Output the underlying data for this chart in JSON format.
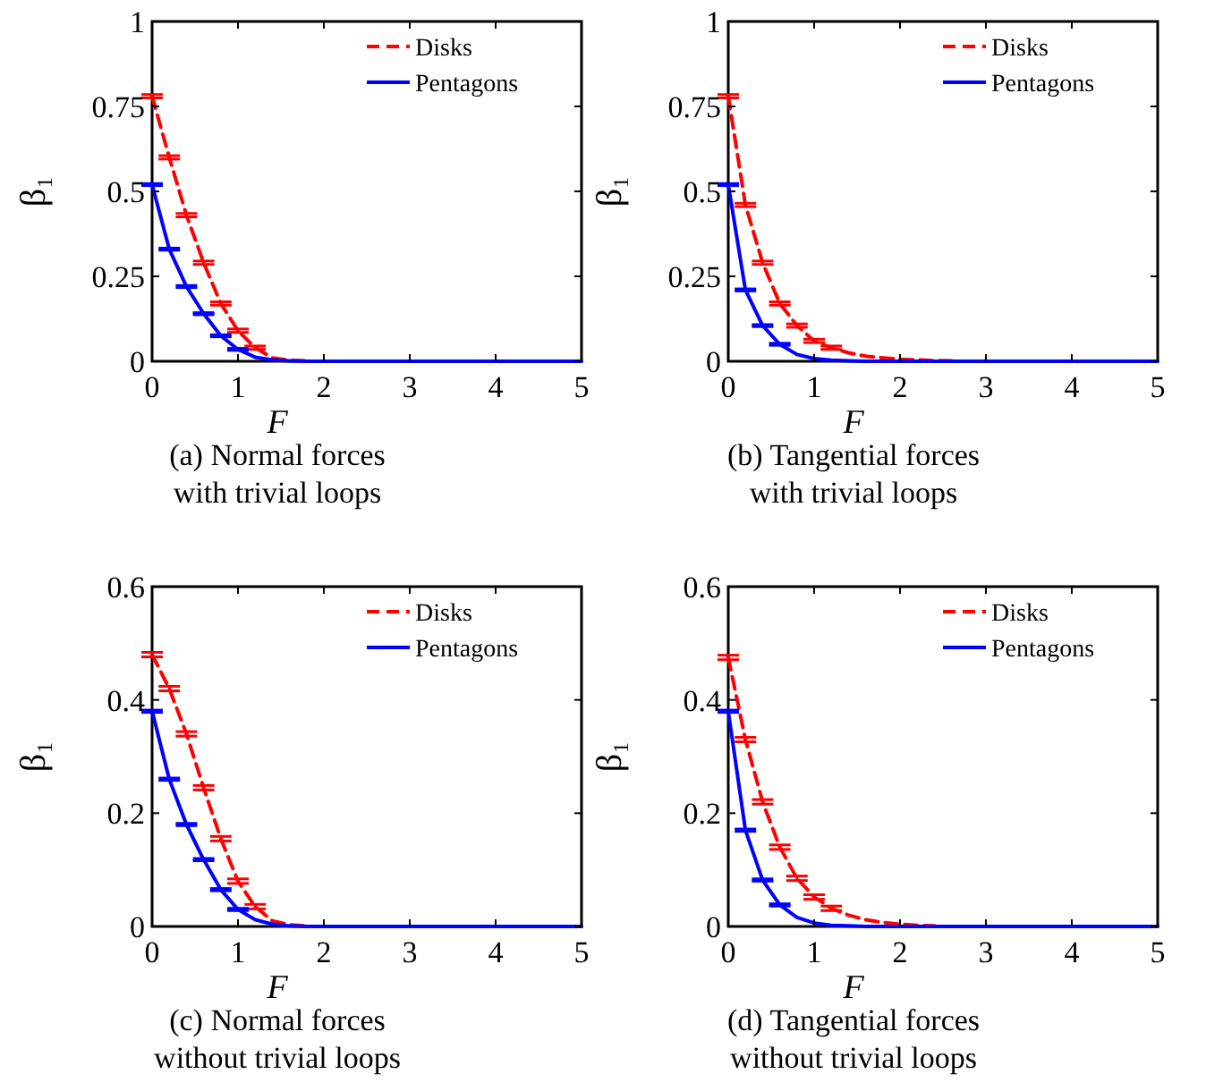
{
  "chart_data": [
    {
      "type": "line",
      "title": "(a)  Normal forces\nwith trivial loops",
      "xlabel": "F",
      "ylabel": "β₁",
      "xlim": [
        0,
        5
      ],
      "ylim": [
        0,
        1
      ],
      "xticks": [
        0,
        1,
        2,
        3,
        4,
        5
      ],
      "yticks": [
        0,
        0.25,
        0.5,
        0.75,
        1
      ],
      "legend": "top right",
      "grid": false,
      "x": [
        0,
        0.2,
        0.4,
        0.6,
        0.8,
        1,
        1.2,
        1.4,
        1.6,
        1.8,
        2,
        2.2,
        2.4,
        2.6,
        2.8,
        3,
        3.2,
        3.4,
        3.6,
        3.8,
        4,
        4.2,
        4.4,
        4.6,
        4.8,
        5
      ],
      "series": [
        {
          "name": "Disks",
          "color": "#ff0000",
          "line_style": "dashed",
          "values": [
            0.78,
            0.6,
            0.43,
            0.29,
            0.17,
            0.09,
            0.04,
            0.01,
            0.003,
            0.001,
            null,
            null,
            null,
            null,
            null,
            null,
            null,
            null,
            null,
            null,
            null,
            null,
            null,
            null,
            null,
            null
          ],
          "errors": [
            0.005,
            0.005,
            0.005,
            0.005,
            0.005,
            0.005,
            0.005,
            null,
            null,
            null,
            null,
            null,
            null,
            null,
            null,
            null,
            null,
            null,
            null,
            null,
            null,
            null,
            null,
            null,
            null,
            null
          ]
        },
        {
          "name": "Pentagons",
          "color": "#0000ff",
          "line_style": "solid",
          "values": [
            0.52,
            0.33,
            0.22,
            0.14,
            0.075,
            0.035,
            0.012,
            0.004,
            0.001,
            0,
            0,
            0,
            0,
            0,
            0,
            0,
            0,
            0,
            0,
            0,
            0,
            0,
            0,
            0,
            0,
            0
          ],
          "errors": [
            0.003,
            0.003,
            0.003,
            0.003,
            0.003,
            0.003,
            null,
            null,
            null,
            null,
            null,
            null,
            null,
            null,
            null,
            null,
            null,
            null,
            null,
            null,
            null,
            null,
            null,
            null,
            null,
            null
          ]
        }
      ]
    },
    {
      "type": "line",
      "title": "(b) Tangential forces\nwith trivial loops",
      "xlabel": "F",
      "ylabel": "β₁",
      "xlim": [
        0,
        5
      ],
      "ylim": [
        0,
        1
      ],
      "xticks": [
        0,
        1,
        2,
        3,
        4,
        5
      ],
      "yticks": [
        0,
        0.25,
        0.5,
        0.75,
        1
      ],
      "legend": "top right",
      "grid": false,
      "x": [
        0,
        0.2,
        0.4,
        0.6,
        0.8,
        1,
        1.2,
        1.4,
        1.6,
        1.8,
        2,
        2.2,
        2.4,
        2.6,
        2.8,
        3,
        3.2,
        3.4,
        3.6,
        3.8,
        4,
        4.2,
        4.4,
        4.6,
        4.8,
        5
      ],
      "series": [
        {
          "name": "Disks",
          "color": "#ff0000",
          "line_style": "dashed",
          "values": [
            0.78,
            0.46,
            0.29,
            0.17,
            0.105,
            0.06,
            0.04,
            0.025,
            0.015,
            0.01,
            0.006,
            0.004,
            0.002,
            0.001,
            null,
            null,
            null,
            null,
            null,
            null,
            null,
            null,
            null,
            null,
            null,
            null
          ],
          "errors": [
            0.005,
            0.005,
            0.005,
            0.005,
            0.005,
            0.005,
            0.005,
            null,
            null,
            null,
            null,
            null,
            null,
            null,
            null,
            null,
            null,
            null,
            null,
            null,
            null,
            null,
            null,
            null,
            null,
            null
          ]
        },
        {
          "name": "Pentagons",
          "color": "#0000ff",
          "line_style": "solid",
          "values": [
            0.52,
            0.21,
            0.105,
            0.05,
            0.02,
            0.008,
            0.003,
            0.001,
            0,
            0,
            0,
            0,
            0,
            0,
            0,
            0,
            0,
            0,
            0,
            0,
            0,
            0,
            0,
            0,
            0,
            0
          ],
          "errors": [
            0.003,
            0.003,
            0.003,
            0.003,
            null,
            null,
            null,
            null,
            null,
            null,
            null,
            null,
            null,
            null,
            null,
            null,
            null,
            null,
            null,
            null,
            null,
            null,
            null,
            null,
            null,
            null
          ]
        }
      ]
    },
    {
      "type": "line",
      "title": "(c) Normal forces\nwithout trivial loops",
      "xlabel": "F",
      "ylabel": "β₁",
      "xlim": [
        0,
        5
      ],
      "ylim": [
        0,
        0.6
      ],
      "xticks": [
        0,
        1,
        2,
        3,
        4,
        5
      ],
      "yticks": [
        0,
        0.2,
        0.4,
        0.6
      ],
      "legend": "top right",
      "grid": false,
      "x": [
        0,
        0.2,
        0.4,
        0.6,
        0.8,
        1,
        1.2,
        1.4,
        1.6,
        1.8,
        2,
        2.2,
        2.4,
        2.6,
        2.8,
        3,
        3.2,
        3.4,
        3.6,
        3.8,
        4,
        4.2,
        4.4,
        4.6,
        4.8,
        5
      ],
      "series": [
        {
          "name": "Disks",
          "color": "#ff0000",
          "line_style": "dashed",
          "values": [
            0.48,
            0.42,
            0.34,
            0.245,
            0.155,
            0.08,
            0.035,
            0.01,
            0.003,
            0.001,
            null,
            null,
            null,
            null,
            null,
            null,
            null,
            null,
            null,
            null,
            null,
            null,
            null,
            null,
            null,
            null
          ],
          "errors": [
            0.004,
            0.004,
            0.004,
            0.004,
            0.004,
            0.004,
            0.004,
            null,
            null,
            null,
            null,
            null,
            null,
            null,
            null,
            null,
            null,
            null,
            null,
            null,
            null,
            null,
            null,
            null,
            null,
            null
          ]
        },
        {
          "name": "Pentagons",
          "color": "#0000ff",
          "line_style": "solid",
          "values": [
            0.38,
            0.26,
            0.18,
            0.118,
            0.065,
            0.03,
            0.012,
            0.004,
            0.001,
            0,
            0,
            0,
            0,
            0,
            0,
            0,
            0,
            0,
            0,
            0,
            0,
            0,
            0,
            0,
            0,
            0
          ],
          "errors": [
            0.002,
            0.002,
            0.002,
            0.002,
            0.002,
            0.002,
            null,
            null,
            null,
            null,
            null,
            null,
            null,
            null,
            null,
            null,
            null,
            null,
            null,
            null,
            null,
            null,
            null,
            null,
            null,
            null
          ]
        }
      ]
    },
    {
      "type": "line",
      "title": "(d) Tangential forces\nwithout trivial loops",
      "xlabel": "F",
      "ylabel": "β₁",
      "xlim": [
        0,
        5
      ],
      "ylim": [
        0,
        0.6
      ],
      "xticks": [
        0,
        1,
        2,
        3,
        4,
        5
      ],
      "yticks": [
        0,
        0.2,
        0.4,
        0.6
      ],
      "legend": "top right",
      "grid": false,
      "x": [
        0,
        0.2,
        0.4,
        0.6,
        0.8,
        1,
        1.2,
        1.4,
        1.6,
        1.8,
        2,
        2.2,
        2.4,
        2.6,
        2.8,
        3,
        3.2,
        3.4,
        3.6,
        3.8,
        4,
        4.2,
        4.4,
        4.6,
        4.8,
        5
      ],
      "series": [
        {
          "name": "Disks",
          "color": "#ff0000",
          "line_style": "dashed",
          "values": [
            0.475,
            0.33,
            0.22,
            0.14,
            0.085,
            0.052,
            0.032,
            0.02,
            0.012,
            0.007,
            0.004,
            0.002,
            0.001,
            null,
            null,
            null,
            null,
            null,
            null,
            null,
            null,
            null,
            null,
            null,
            null,
            null
          ],
          "errors": [
            0.004,
            0.004,
            0.004,
            0.004,
            0.004,
            0.004,
            0.004,
            null,
            null,
            null,
            null,
            null,
            null,
            null,
            null,
            null,
            null,
            null,
            null,
            null,
            null,
            null,
            null,
            null,
            null,
            null
          ]
        },
        {
          "name": "Pentagons",
          "color": "#0000ff",
          "line_style": "solid",
          "values": [
            0.38,
            0.17,
            0.082,
            0.038,
            0.016,
            0.006,
            0.002,
            0.001,
            0,
            0,
            0,
            0,
            0,
            0,
            0,
            0,
            0,
            0,
            0,
            0,
            0,
            0,
            0,
            0,
            0,
            0
          ],
          "errors": [
            0.002,
            0.002,
            0.002,
            0.002,
            null,
            null,
            null,
            null,
            null,
            null,
            null,
            null,
            null,
            null,
            null,
            null,
            null,
            null,
            null,
            null,
            null,
            null,
            null,
            null,
            null,
            null
          ]
        }
      ]
    }
  ]
}
